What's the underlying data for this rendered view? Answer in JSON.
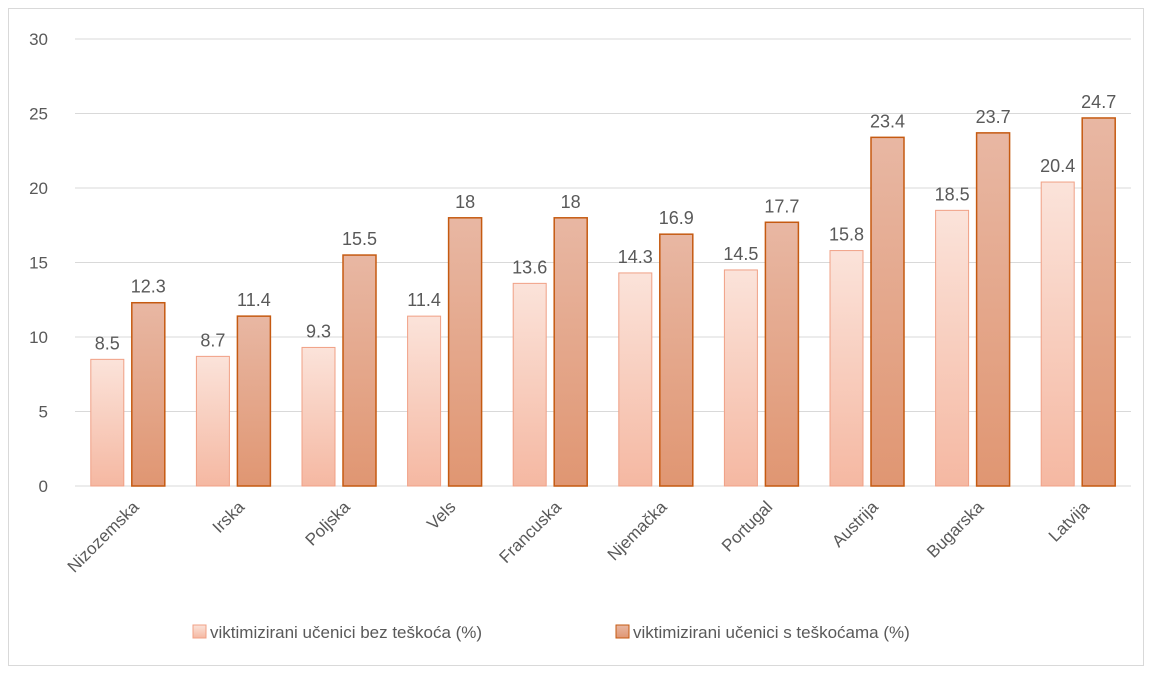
{
  "chart_data": {
    "type": "bar",
    "categories": [
      "Nizozemska",
      "Irska",
      "Poljska",
      "Vels",
      "Francuska",
      "Njemačka",
      "Portugal",
      "Austrija",
      "Bugarska",
      "Latvija"
    ],
    "series": [
      {
        "name": "viktimizirani učenici bez teškoća (%)",
        "values": [
          8.5,
          8.7,
          9.3,
          11.4,
          13.6,
          14.3,
          14.5,
          15.8,
          18.5,
          20.4
        ],
        "labels": [
          "8.5",
          "8.7",
          "9.3",
          "11.4",
          "13.6",
          "14.3",
          "14.5",
          "15.8",
          "18.5",
          "20.4"
        ],
        "color_top": "#fbe3da",
        "color_bottom": "#f5b8a2",
        "border": "#f0a085"
      },
      {
        "name": "viktimizirani učenici s teškoćama (%)",
        "values": [
          12.3,
          11.4,
          15.5,
          18,
          18,
          16.9,
          17.7,
          23.4,
          23.7,
          24.7
        ],
        "labels": [
          "12.3",
          "11.4",
          "15.5",
          "18",
          "18",
          "16.9",
          "17.7",
          "23.4",
          "23.7",
          "24.7"
        ],
        "color_top": "#e8b7a3",
        "color_bottom": "#e09672",
        "border": "#c55a11"
      }
    ],
    "ylim": [
      0,
      30
    ],
    "yticks": [
      "0",
      "5",
      "10",
      "15",
      "20",
      "25",
      "30"
    ],
    "grid": true,
    "legend_position": "bottom",
    "gridline_color": "#d9d9d9"
  }
}
